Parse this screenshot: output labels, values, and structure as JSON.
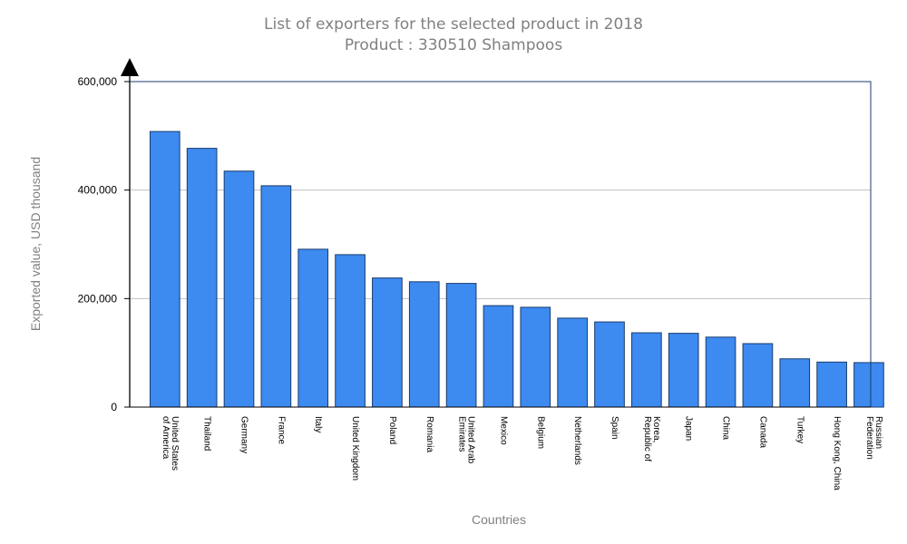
{
  "chart_data": {
    "type": "bar",
    "title": "List of exporters for the selected product in 2018",
    "subtitle": "Product : 330510 Shampoos",
    "xlabel": "Countries",
    "ylabel": "Exported value, USD thousand",
    "ylim": [
      0,
      600000
    ],
    "yticks": [
      0,
      200000,
      400000,
      600000
    ],
    "ytick_labels": [
      "0",
      "200,000",
      "400,000",
      "600,000"
    ],
    "grid": true,
    "bar_color": "#3d8af0",
    "bar_edge_color": "#1a3c6e",
    "categories": [
      [
        "United States",
        "of America"
      ],
      [
        "Thailand"
      ],
      [
        "Germany"
      ],
      [
        "France"
      ],
      [
        "Italy"
      ],
      [
        "United Kingdom"
      ],
      [
        "Poland"
      ],
      [
        "Romania"
      ],
      [
        "United Arab",
        "Emirates"
      ],
      [
        "Mexico"
      ],
      [
        "Belgium"
      ],
      [
        "Netherlands"
      ],
      [
        "Spain"
      ],
      [
        "Korea,",
        "Republic of"
      ],
      [
        "Japan"
      ],
      [
        "China"
      ],
      [
        "Canada"
      ],
      [
        "Turkey"
      ],
      [
        "Hong Kong, China"
      ],
      [
        "Russian",
        "Federation"
      ]
    ],
    "values": [
      508000,
      477000,
      435000,
      408000,
      291000,
      281000,
      238000,
      231000,
      228000,
      187000,
      184000,
      164000,
      157000,
      137000,
      136000,
      129000,
      117000,
      89000,
      83000,
      82000
    ]
  }
}
